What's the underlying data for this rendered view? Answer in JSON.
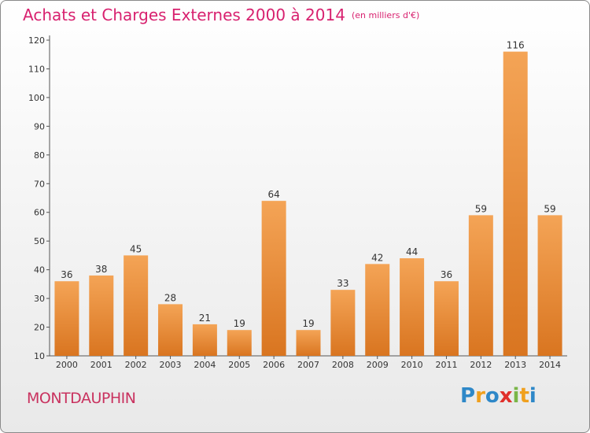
{
  "title": "Achats et Charges Externes 2000 à 2014",
  "subtitle": "(en milliers d'€)",
  "commune": "MONTDAUPHIN",
  "brand": {
    "letters": [
      "P",
      "r",
      "o",
      "x",
      "i",
      "t",
      "i"
    ],
    "colors": [
      "#2e88c8",
      "#f0a01e",
      "#2e88c8",
      "#e0302b",
      "#7ab648",
      "#f0a01e",
      "#2e88c8"
    ]
  },
  "colors": {
    "accent": "#d8216f",
    "bar_top": "#f4a456",
    "bar_bottom": "#d97520"
  },
  "chart_data": {
    "type": "bar",
    "categories": [
      "2000",
      "2001",
      "2002",
      "2003",
      "2004",
      "2005",
      "2006",
      "2007",
      "2008",
      "2009",
      "2010",
      "2011",
      "2012",
      "2013",
      "2014"
    ],
    "values": [
      36,
      38,
      45,
      28,
      21,
      19,
      64,
      19,
      33,
      42,
      44,
      36,
      59,
      116,
      59
    ],
    "ylim": [
      10,
      120
    ],
    "yticks": [
      10,
      20,
      30,
      40,
      50,
      60,
      70,
      80,
      90,
      100,
      110,
      120
    ],
    "grid": false,
    "data_labels": true
  }
}
